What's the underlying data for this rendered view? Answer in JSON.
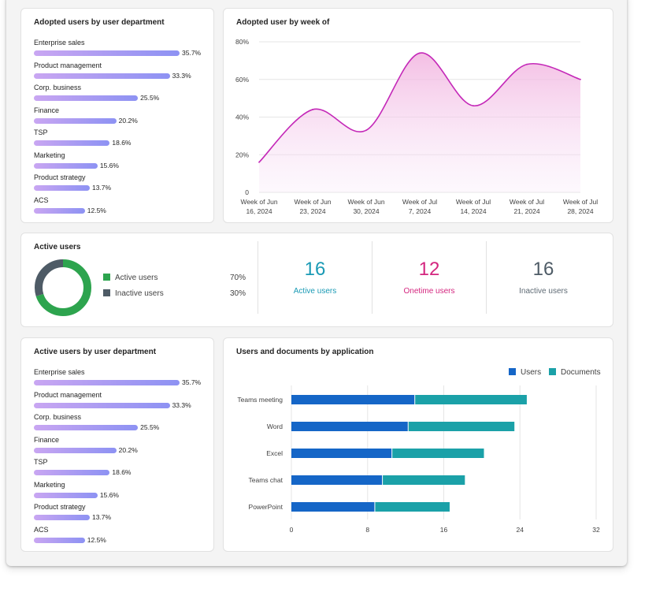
{
  "colors": {
    "bar_gradient_start": "#c9a6f2",
    "bar_gradient_end": "#8d92f3",
    "line_magenta": "#c428b8",
    "active_green": "#2da44e",
    "inactive_slate": "#4e5b66",
    "teal": "#1a9ab5",
    "pink": "#d4267f",
    "users_blue": "#1566c7",
    "documents_teal": "#1ba1a8"
  },
  "adopted_by_dept": {
    "title": "Adopted users by user department",
    "rows": [
      {
        "label": "Enterprise sales",
        "value": "35.7%",
        "pct": 35.7
      },
      {
        "label": "Product management",
        "value": "33.3%",
        "pct": 33.3
      },
      {
        "label": "Corp. business",
        "value": "25.5%",
        "pct": 25.5
      },
      {
        "label": "Finance",
        "value": "20.2%",
        "pct": 20.2
      },
      {
        "label": "TSP",
        "value": "18.6%",
        "pct": 18.6
      },
      {
        "label": "Marketing",
        "value": "15.6%",
        "pct": 15.6
      },
      {
        "label": "Product strategy",
        "value": "13.7%",
        "pct": 13.7
      },
      {
        "label": "ACS",
        "value": "12.5%",
        "pct": 12.5
      }
    ]
  },
  "adopted_by_week": {
    "title": "Adopted user by week of"
  },
  "active_users": {
    "title": "Active users",
    "legend": [
      {
        "label": "Active users",
        "value": "70%",
        "color": "#2da44e"
      },
      {
        "label": "Inactive users",
        "value": "30%",
        "color": "#4e5b66"
      }
    ],
    "stats": [
      {
        "number": "16",
        "label": "Active users",
        "color": "#1a9ab5"
      },
      {
        "number": "12",
        "label": "Onetime users",
        "color": "#d4267f"
      },
      {
        "number": "16",
        "label": "Inactive users",
        "color": "#4e5b66"
      }
    ]
  },
  "active_by_dept": {
    "title": "Active users by user department",
    "rows": [
      {
        "label": "Enterprise sales",
        "value": "35.7%",
        "pct": 35.7
      },
      {
        "label": "Product management",
        "value": "33.3%",
        "pct": 33.3
      },
      {
        "label": "Corp. business",
        "value": "25.5%",
        "pct": 25.5
      },
      {
        "label": "Finance",
        "value": "20.2%",
        "pct": 20.2
      },
      {
        "label": "TSP",
        "value": "18.6%",
        "pct": 18.6
      },
      {
        "label": "Marketing",
        "value": "15.6%",
        "pct": 15.6
      },
      {
        "label": "Product strategy",
        "value": "13.7%",
        "pct": 13.7
      },
      {
        "label": "ACS",
        "value": "12.5%",
        "pct": 12.5
      }
    ]
  },
  "users_docs": {
    "title": "Users and documents by application"
  },
  "chart_data": [
    {
      "type": "bar",
      "orientation": "horizontal",
      "title": "Adopted users by user department",
      "categories": [
        "Enterprise sales",
        "Product management",
        "Corp. business",
        "Finance",
        "TSP",
        "Marketing",
        "Product strategy",
        "ACS"
      ],
      "values": [
        35.7,
        33.3,
        25.5,
        20.2,
        18.6,
        15.6,
        13.7,
        12.5
      ],
      "unit": "%"
    },
    {
      "type": "area",
      "title": "Adopted user by week of",
      "categories": [
        {
          "line1": "Week of Jun",
          "line2": "16, 2024"
        },
        {
          "line1": "Week of Jun",
          "line2": "23, 2024"
        },
        {
          "line1": "Week of Jun",
          "line2": "30, 2024"
        },
        {
          "line1": "Week of Jul",
          "line2": "7, 2024"
        },
        {
          "line1": "Week of Jul",
          "line2": "14, 2024"
        },
        {
          "line1": "Week of Jul",
          "line2": "21, 2024"
        },
        {
          "line1": "Week of Jul",
          "line2": "28, 2024"
        }
      ],
      "values": [
        16,
        44,
        33,
        74,
        46,
        68,
        60
      ],
      "ylim": [
        0,
        80
      ],
      "yticks": [
        {
          "value": 0,
          "label": "0"
        },
        {
          "value": 20,
          "label": "20%"
        },
        {
          "value": 40,
          "label": "40%"
        },
        {
          "value": 60,
          "label": "60%"
        },
        {
          "value": 80,
          "label": "80%"
        }
      ],
      "grid": true,
      "color": "#c428b8"
    },
    {
      "type": "pie",
      "variant": "donut",
      "title": "Active users",
      "slices": [
        {
          "label": "Active users",
          "value": 70,
          "color": "#2da44e"
        },
        {
          "label": "Inactive users",
          "value": 30,
          "color": "#4e5b66"
        }
      ]
    },
    {
      "type": "bar",
      "orientation": "horizontal",
      "title": "Active users by user department",
      "categories": [
        "Enterprise sales",
        "Product management",
        "Corp. business",
        "Finance",
        "TSP",
        "Marketing",
        "Product strategy",
        "ACS"
      ],
      "values": [
        35.7,
        33.3,
        25.5,
        20.2,
        18.6,
        15.6,
        13.7,
        12.5
      ],
      "unit": "%"
    },
    {
      "type": "bar",
      "orientation": "horizontal",
      "stacked": true,
      "title": "Users and documents by application",
      "categories": [
        "Teams meeting",
        "Word",
        "Excel",
        "Teams chat",
        "PowerPoint"
      ],
      "series": [
        {
          "name": "Users",
          "values": [
            13,
            12.3,
            10.6,
            9.6,
            8.8
          ],
          "color": "#1566c7"
        },
        {
          "name": "Documents",
          "values": [
            11.8,
            11.2,
            9.7,
            8.7,
            7.9
          ],
          "color": "#1ba1a8"
        }
      ],
      "xlim": [
        0,
        32
      ],
      "xticks": [
        0,
        8,
        16,
        24,
        32
      ],
      "legend": "top-right",
      "grid": true
    }
  ]
}
